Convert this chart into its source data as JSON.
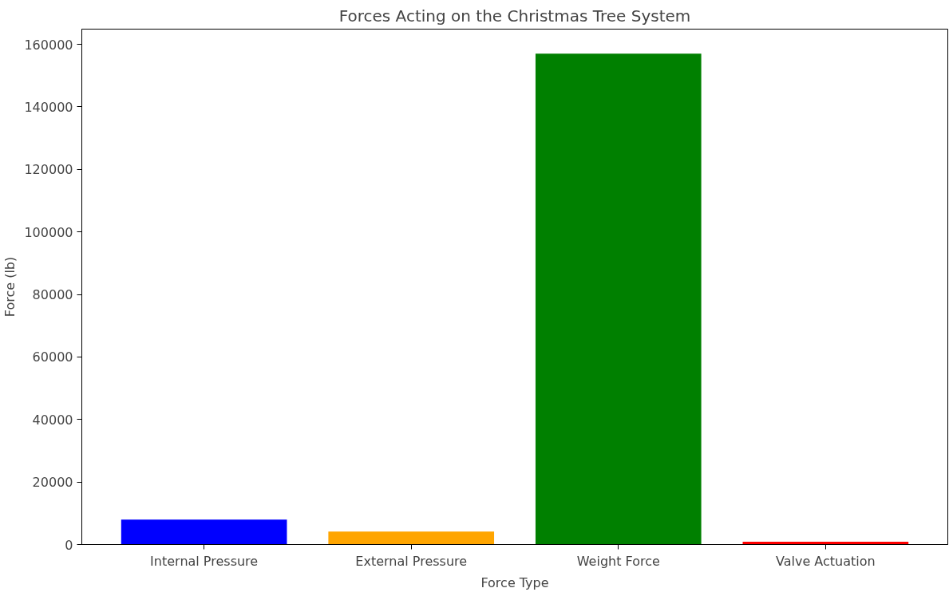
{
  "chart_data": {
    "type": "bar",
    "title": "Forces Acting on the Christmas Tree System",
    "xlabel": "Force Type",
    "ylabel": "Force (lb)",
    "categories": [
      "Internal Pressure",
      "External Pressure",
      "Weight Force",
      "Valve Actuation"
    ],
    "values": [
      8000,
      4150,
      157000,
      900
    ],
    "colors": [
      "#0000ff",
      "#ffa500",
      "#008000",
      "#ff0000"
    ],
    "ylim": [
      0,
      164850
    ],
    "yticks": [
      0,
      20000,
      40000,
      60000,
      80000,
      100000,
      120000,
      140000,
      160000
    ],
    "grid": false
  }
}
